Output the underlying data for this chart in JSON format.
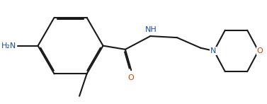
{
  "bg_color": "#ffffff",
  "line_color": "#1a1a1a",
  "N_color": "#1a4fa0",
  "O_color": "#cc4400",
  "figsize": [
    3.77,
    1.47
  ],
  "dpi": 100,
  "NH2_label": "H₂N",
  "NH_label": "NH",
  "O_label": "O",
  "N_label": "N",
  "O_ring_label": "O",
  "lw": 1.5
}
